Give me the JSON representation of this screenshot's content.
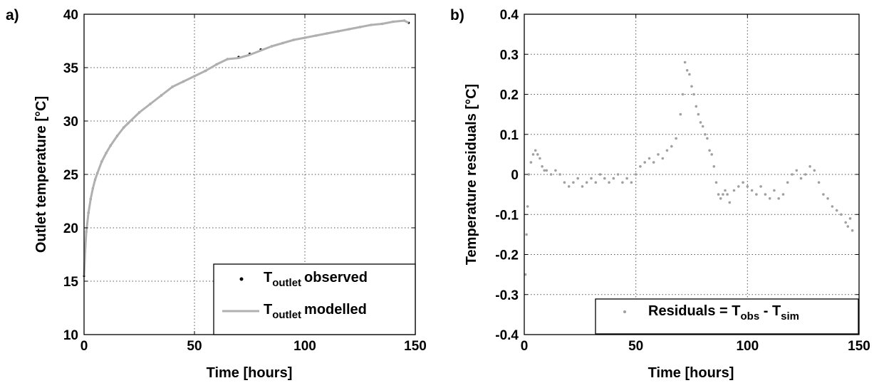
{
  "chart_data": [
    {
      "panel_label": "a)",
      "type": "line",
      "xlabel": "Time [hours]",
      "ylabel": "Outlet temperature [°C]",
      "xlim": [
        0,
        150
      ],
      "ylim": [
        10,
        40
      ],
      "xticks": [
        "0",
        "50",
        "100",
        "150"
      ],
      "yticks": [
        "10",
        "15",
        "20",
        "25",
        "30",
        "35",
        "40"
      ],
      "grid": true,
      "legend_position": "bottom-right",
      "series": [
        {
          "name": "observed",
          "legend_main": "T",
          "legend_sub": "outlet",
          "legend_rest": "observed",
          "style": "markers",
          "color": "#000000",
          "x": [
            0,
            0.5,
            1,
            2,
            3,
            4,
            5,
            6,
            8,
            10,
            12,
            15,
            18,
            20,
            25,
            30,
            35,
            40,
            45,
            50,
            55,
            60,
            65,
            70,
            75,
            80,
            85,
            90,
            95,
            100,
            105,
            110,
            115,
            120,
            125,
            130,
            135,
            140,
            145,
            147
          ],
          "y": [
            15.5,
            17.8,
            19.6,
            21.4,
            22.7,
            23.7,
            24.5,
            25.1,
            26.2,
            27.0,
            27.7,
            28.6,
            29.4,
            29.8,
            30.8,
            31.6,
            32.4,
            33.2,
            33.7,
            34.2,
            34.7,
            35.3,
            35.8,
            36.0,
            36.3,
            36.7,
            37.0,
            37.3,
            37.6,
            37.8,
            38.0,
            38.2,
            38.4,
            38.6,
            38.8,
            39.0,
            39.1,
            39.3,
            39.4,
            39.2
          ]
        },
        {
          "name": "modelled",
          "legend_main": "T",
          "legend_sub": "outlet",
          "legend_rest": "modelled",
          "style": "line",
          "color": "#b0b0b0",
          "x": [
            0,
            0.5,
            1,
            2,
            3,
            4,
            5,
            6,
            8,
            10,
            12,
            15,
            18,
            20,
            25,
            30,
            35,
            40,
            45,
            50,
            55,
            60,
            65,
            70,
            75,
            80,
            85,
            90,
            95,
            100,
            105,
            110,
            115,
            120,
            125,
            130,
            135,
            140,
            145,
            147
          ],
          "y": [
            15.5,
            17.8,
            19.6,
            21.4,
            22.7,
            23.7,
            24.5,
            25.1,
            26.2,
            27.0,
            27.7,
            28.6,
            29.4,
            29.8,
            30.8,
            31.6,
            32.4,
            33.2,
            33.7,
            34.2,
            34.7,
            35.3,
            35.8,
            35.9,
            36.2,
            36.6,
            37.0,
            37.3,
            37.6,
            37.8,
            38.0,
            38.2,
            38.4,
            38.6,
            38.8,
            39.0,
            39.1,
            39.3,
            39.4,
            39.2
          ]
        }
      ]
    },
    {
      "panel_label": "b)",
      "type": "scatter",
      "xlabel": "Time [hours]",
      "ylabel": "Temperature residuals [°C]",
      "xlim": [
        0,
        150
      ],
      "ylim": [
        -0.4,
        0.4
      ],
      "xticks": [
        "0",
        "50",
        "100",
        "150"
      ],
      "yticks": [
        "-0.4",
        "-0.3",
        "-0.2",
        "-0.1",
        "0",
        "0.1",
        "0.2",
        "0.3",
        "0.4"
      ],
      "grid": true,
      "legend_position": "bottom-right",
      "series": [
        {
          "name": "Residuals",
          "legend_main": "Residuals = T",
          "legend_sub1": "obs",
          "legend_mid": " - T",
          "legend_sub2": "sim",
          "style": "markers",
          "color": "#a0a0a0",
          "x": [
            0.5,
            1,
            1.5,
            2,
            3,
            4,
            5,
            6,
            7,
            8,
            9,
            10,
            12,
            14,
            16,
            18,
            20,
            22,
            24,
            26,
            28,
            30,
            32,
            34,
            36,
            38,
            40,
            42,
            44,
            46,
            48,
            50,
            52,
            54,
            56,
            58,
            60,
            62,
            64,
            66,
            68,
            70,
            71,
            72,
            73,
            74,
            75,
            76,
            77,
            78,
            79,
            80,
            81,
            82,
            83,
            84,
            85,
            86,
            87,
            88,
            89,
            90,
            91,
            92,
            94,
            96,
            98,
            100,
            102,
            104,
            106,
            108,
            110,
            112,
            114,
            116,
            118,
            120,
            122,
            124,
            126,
            128,
            130,
            132,
            134,
            136,
            138,
            140,
            142,
            144,
            145,
            146,
            147
          ],
          "y": [
            -0.25,
            -0.15,
            -0.08,
            0.0,
            0.03,
            0.05,
            0.06,
            0.05,
            0.04,
            0.02,
            0.01,
            0.01,
            0.0,
            0.01,
            0.0,
            -0.02,
            -0.03,
            -0.02,
            -0.01,
            -0.03,
            -0.02,
            -0.01,
            -0.02,
            0.0,
            -0.01,
            -0.02,
            -0.01,
            0.0,
            -0.02,
            -0.01,
            -0.02,
            0.0,
            0.02,
            0.03,
            0.04,
            0.03,
            0.05,
            0.04,
            0.06,
            0.07,
            0.09,
            0.15,
            0.2,
            0.28,
            0.26,
            0.25,
            0.22,
            0.2,
            0.17,
            0.15,
            0.13,
            0.12,
            0.1,
            0.09,
            0.06,
            0.05,
            0.02,
            -0.02,
            -0.05,
            -0.06,
            -0.05,
            -0.04,
            -0.05,
            -0.07,
            -0.04,
            -0.03,
            -0.02,
            -0.03,
            -0.04,
            -0.05,
            -0.03,
            -0.05,
            -0.06,
            -0.04,
            -0.06,
            -0.05,
            -0.02,
            0.0,
            0.01,
            -0.01,
            0.0,
            0.02,
            0.01,
            -0.02,
            -0.05,
            -0.06,
            -0.08,
            -0.09,
            -0.1,
            -0.12,
            -0.13,
            -0.11,
            -0.14
          ]
        }
      ]
    }
  ]
}
